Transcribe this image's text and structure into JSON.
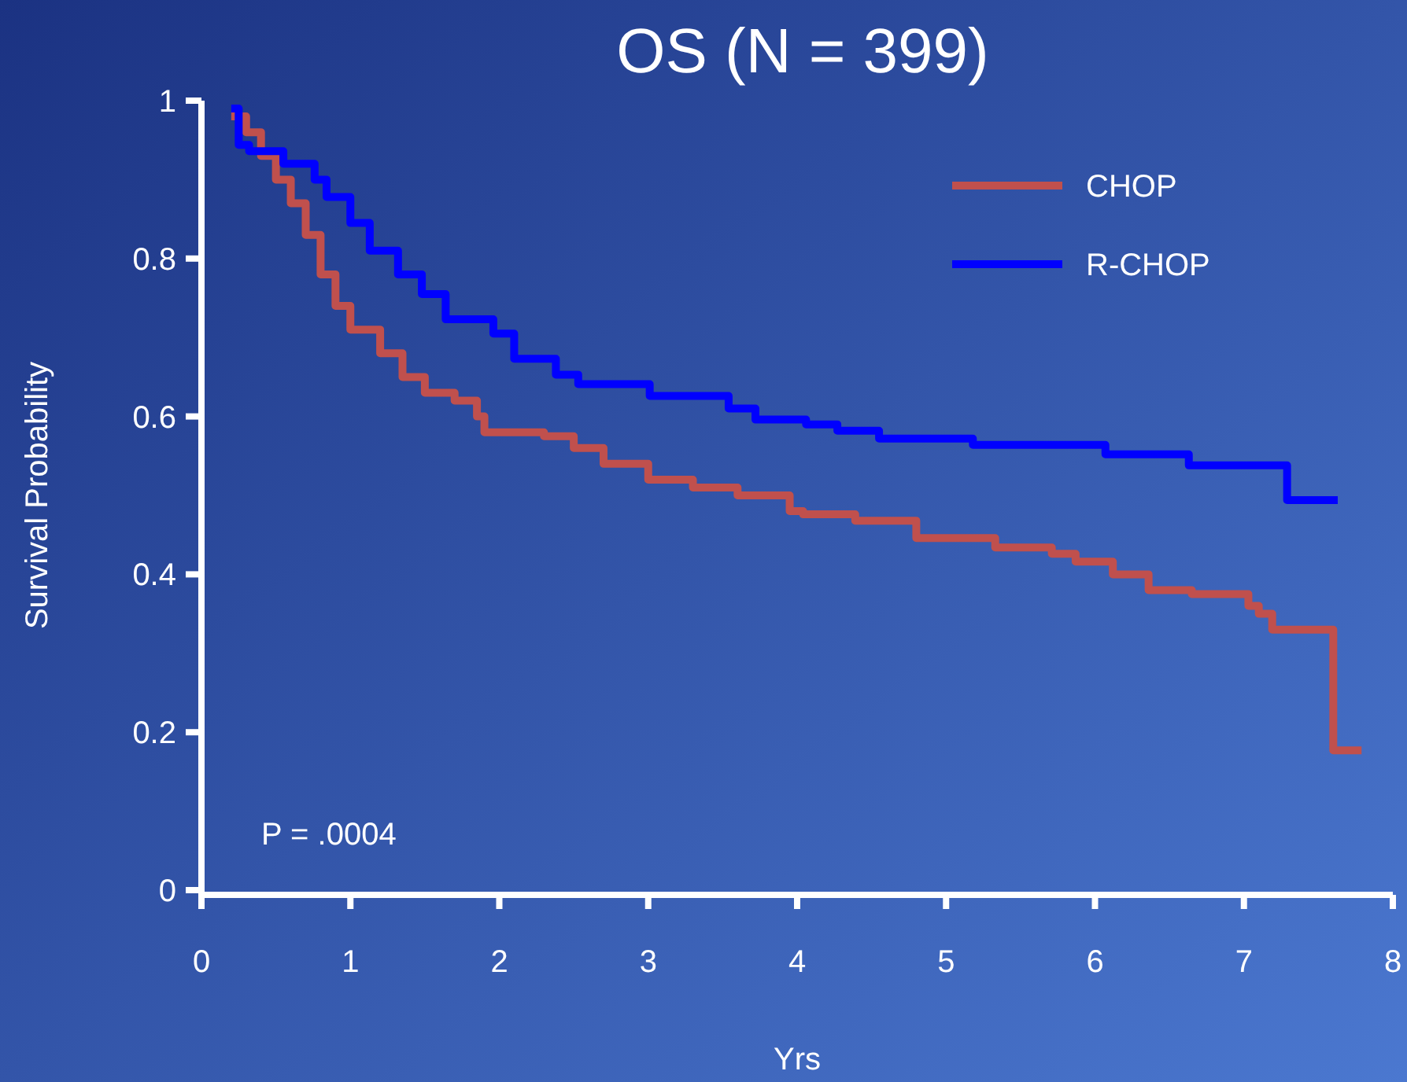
{
  "chart_data": {
    "type": "step",
    "title": "OS (N = 399)",
    "xlabel": "Yrs",
    "ylabel": "Survival Probability",
    "xlim": [
      0,
      8
    ],
    "xticks": [
      0,
      1,
      2,
      3,
      4,
      5,
      6,
      7,
      8
    ],
    "ylim": [
      0,
      1
    ],
    "yticks": [
      0,
      0.2,
      0.4,
      0.6,
      0.8,
      1
    ],
    "legend": "top right",
    "grid": false,
    "marker": "none",
    "line_style": "solid",
    "annotations": [
      "P = .0004"
    ],
    "series": [
      {
        "name": "CHOP",
        "color": "#c0504d",
        "x": [
          0.2,
          0.3,
          0.4,
          0.5,
          0.6,
          0.7,
          0.8,
          0.9,
          1.0,
          1.2,
          1.35,
          1.5,
          1.7,
          1.85,
          1.9,
          2.3,
          2.5,
          2.7,
          3.0,
          3.3,
          3.6,
          3.95,
          4.04,
          4.39,
          4.8,
          5.33,
          5.71,
          5.87,
          6.12,
          6.36,
          6.65,
          7.03,
          7.1,
          7.19,
          7.6,
          7.79
        ],
        "values": [
          0.98,
          0.96,
          0.93,
          0.9,
          0.87,
          0.83,
          0.78,
          0.74,
          0.71,
          0.68,
          0.65,
          0.63,
          0.62,
          0.6,
          0.58,
          0.575,
          0.56,
          0.54,
          0.52,
          0.51,
          0.5,
          0.48,
          0.476,
          0.468,
          0.446,
          0.434,
          0.426,
          0.416,
          0.4,
          0.38,
          0.375,
          0.36,
          0.35,
          0.33,
          0.177,
          0.177
        ]
      },
      {
        "name": "R-CHOP",
        "color": "#0000ff",
        "x": [
          0.2,
          0.25,
          0.32,
          0.55,
          0.76,
          0.84,
          1.0,
          1.13,
          1.32,
          1.48,
          1.64,
          1.96,
          2.1,
          2.38,
          2.53,
          3.01,
          3.54,
          3.72,
          4.06,
          4.27,
          4.55,
          5.18,
          6.07,
          6.63,
          7.29,
          7.63
        ],
        "values": [
          0.99,
          0.944,
          0.936,
          0.92,
          0.9,
          0.878,
          0.845,
          0.81,
          0.78,
          0.755,
          0.723,
          0.705,
          0.673,
          0.653,
          0.641,
          0.626,
          0.61,
          0.596,
          0.59,
          0.582,
          0.572,
          0.564,
          0.552,
          0.538,
          0.494,
          0.494
        ]
      }
    ]
  }
}
